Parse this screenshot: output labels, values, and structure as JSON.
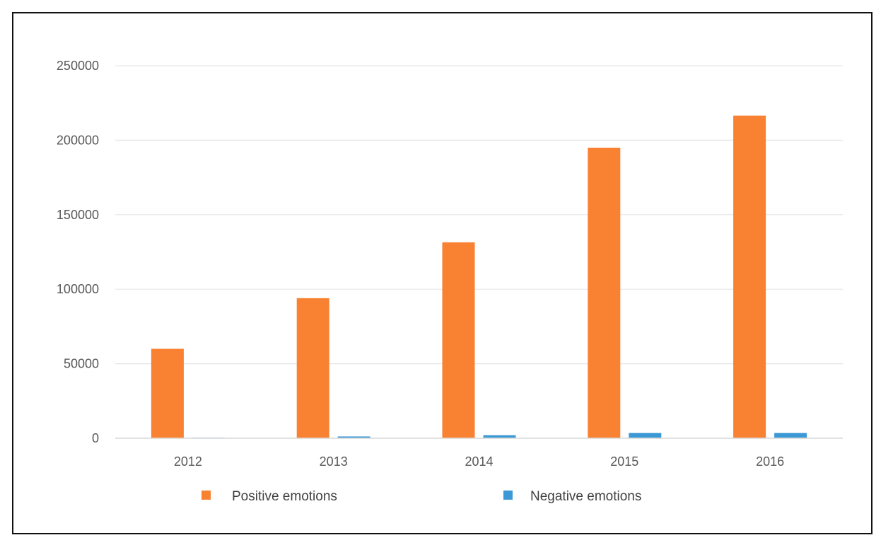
{
  "chart_data": {
    "type": "bar",
    "categories": [
      "2012",
      "2013",
      "2014",
      "2015",
      "2016"
    ],
    "series": [
      {
        "name": "Positive emotions",
        "color": "#f98132",
        "values": [
          60000,
          94000,
          131500,
          195000,
          216500
        ]
      },
      {
        "name": "Negative emotions",
        "color": "#3d98d6",
        "values": [
          400,
          1200,
          2000,
          3500,
          3500
        ]
      }
    ],
    "y_ticks": [
      "0",
      "50000",
      "100000",
      "150000",
      "200000",
      "250000"
    ],
    "ylim": [
      0,
      250000
    ],
    "grid": true,
    "legend_position": "bottom"
  }
}
